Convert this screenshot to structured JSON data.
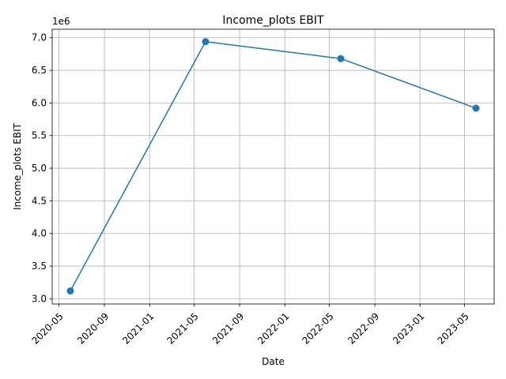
{
  "chart_data": {
    "type": "line",
    "title": "Income_plots EBIT",
    "xlabel": "Date",
    "ylabel": "Income_plots EBIT",
    "y_offset_label": "1e6",
    "x_type": "date",
    "x": [
      "2020-06-01",
      "2021-06-01",
      "2022-06-01",
      "2023-06-01"
    ],
    "series": [
      {
        "values": [
          3120000,
          6940000,
          6680000,
          5920000
        ]
      }
    ],
    "xlim": [
      "2020-04-13",
      "2023-07-20"
    ],
    "ylim": [
      2920000,
      7130000
    ],
    "x_ticks": [
      "2020-05",
      "2020-09",
      "2021-01",
      "2021-05",
      "2021-09",
      "2022-01",
      "2022-05",
      "2022-09",
      "2023-01",
      "2023-05"
    ],
    "y_ticks": [
      "3.0",
      "3.5",
      "4.0",
      "4.5",
      "5.0",
      "5.5",
      "6.0",
      "6.5",
      "7.0"
    ],
    "grid": true,
    "marker": "circle",
    "line_color": "#1f77b4"
  }
}
